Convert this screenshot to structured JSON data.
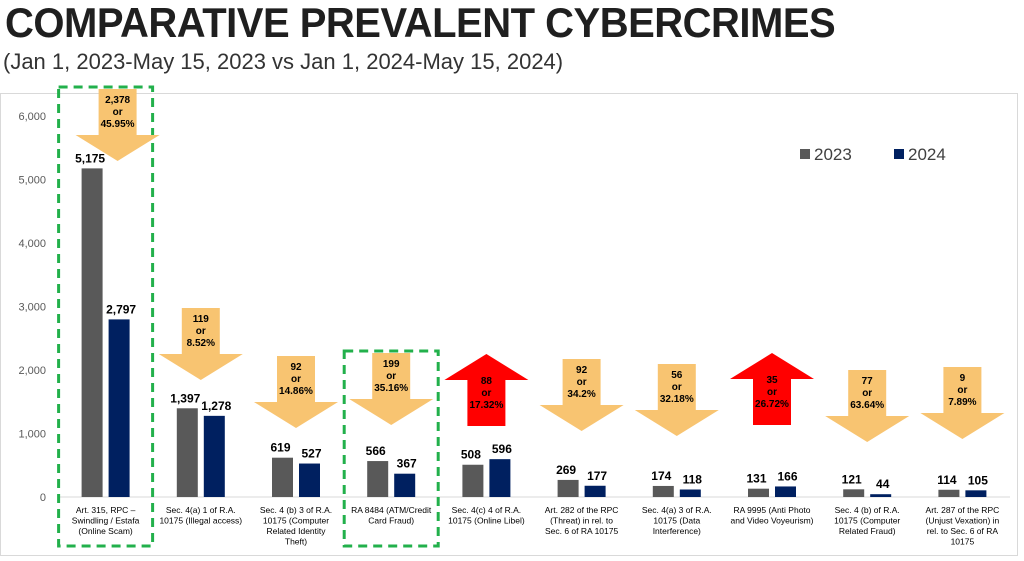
{
  "title": "COMPARATIVE PREVALENT CYBERCRIMES",
  "subtitle": "(Jan 1, 2023-May 15, 2023 vs Jan 1, 2024-May 15, 2024)",
  "colors": {
    "s2023": "#595959",
    "s2024": "#002060",
    "decrease": "#f8c471",
    "increase": "#ff0000",
    "highlight": "#22b04b"
  },
  "chart_data": {
    "type": "bar",
    "title": "COMPARATIVE PREVALENT CYBERCRIMES",
    "subtitle": "(Jan 1, 2023-May 15, 2023 vs Jan 1, 2024-May 15, 2024)",
    "categories": [
      "Art. 315, RPC – Swindling / Estafa (Online Scam)",
      "Sec. 4(a) 1 of R.A. 10175 (Illegal access)",
      "Sec. 4 (b) 3 of R.A. 10175 (Computer Related Identity Theft)",
      "RA 8484 (ATM/Credit Card Fraud)",
      "Sec. 4(c) 4 of R.A. 10175 (Online Libel)",
      "Art. 282 of the RPC (Threat) in rel. to Sec. 6 of RA 10175",
      "Sec. 4(a) 3 of R.A. 10175 (Data Interference)",
      "RA 9995 (Anti Photo and Video Voyeurism)",
      "Sec. 4 (b) of R.A. 10175 (Computer Related Fraud)",
      "Art. 287 of the RPC (Unjust Vexation) in rel. to Sec. 6 of RA 10175"
    ],
    "series": [
      {
        "name": "2023",
        "values": [
          5175,
          1397,
          619,
          566,
          508,
          269,
          174,
          131,
          121,
          114
        ]
      },
      {
        "name": "2024",
        "values": [
          2797,
          1278,
          527,
          367,
          596,
          177,
          118,
          166,
          44,
          105
        ]
      }
    ],
    "value_labels": {
      "2023": [
        "5,175",
        "1,397",
        "619",
        "566",
        "508",
        "269",
        "174",
        "131",
        "121",
        "114"
      ],
      "2024": [
        "2,797",
        "1,278",
        "527",
        "367",
        "596",
        "177",
        "118",
        "166",
        "44",
        "105"
      ]
    },
    "changes": [
      {
        "direction": "down",
        "amount": "2,378",
        "percent": "45.95%"
      },
      {
        "direction": "down",
        "amount": "119",
        "percent": "8.52%"
      },
      {
        "direction": "down",
        "amount": "92",
        "percent": "14.86%"
      },
      {
        "direction": "down",
        "amount": "199",
        "percent": "35.16%"
      },
      {
        "direction": "up",
        "amount": "88",
        "percent": "17.32%"
      },
      {
        "direction": "down",
        "amount": "92",
        "percent": "34.2%"
      },
      {
        "direction": "down",
        "amount": "56",
        "percent": "32.18%"
      },
      {
        "direction": "up",
        "amount": "35",
        "percent": "26.72%"
      },
      {
        "direction": "down",
        "amount": "77",
        "percent": "63.64%"
      },
      {
        "direction": "down",
        "amount": "9",
        "percent": "7.89%"
      }
    ],
    "change_connector": "or",
    "highlighted_categories": [
      0,
      3
    ],
    "ylim": [
      0,
      6000
    ],
    "yticks": [
      0,
      1000,
      2000,
      3000,
      4000,
      5000,
      6000
    ],
    "ytick_labels": [
      "0",
      "1,000",
      "2,000",
      "3,000",
      "4,000",
      "5,000",
      "6,000"
    ],
    "grid": false,
    "legend": {
      "position": "top-right",
      "entries": [
        "2023",
        "2024"
      ]
    }
  }
}
